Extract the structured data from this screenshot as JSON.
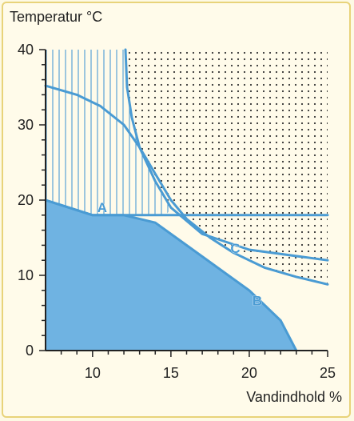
{
  "chart_data": {
    "type": "line",
    "ylabel": "Temperatur °C",
    "xlabel": "Vandindhold %",
    "xlim": [
      7,
      25
    ],
    "ylim": [
      0,
      40
    ],
    "x_ticks": [
      "10",
      "15",
      "20",
      "25"
    ],
    "y_ticks": [
      "0",
      "10",
      "20",
      "30",
      "40"
    ],
    "grid": false,
    "series": [
      {
        "name": "A",
        "points": [
          [
            7,
            20
          ],
          [
            10,
            18
          ],
          [
            25,
            18
          ]
        ]
      },
      {
        "name": "B",
        "points": [
          [
            7,
            20
          ],
          [
            10,
            18
          ],
          [
            12,
            18
          ],
          [
            14,
            17
          ],
          [
            16,
            14
          ],
          [
            18,
            11
          ],
          [
            20,
            8
          ],
          [
            22,
            4
          ],
          [
            23,
            0
          ]
        ]
      },
      {
        "name": "C",
        "points": [
          [
            7,
            35.2
          ],
          [
            9,
            34
          ],
          [
            10.5,
            32.5
          ],
          [
            12,
            30
          ],
          [
            13,
            27
          ],
          [
            14,
            23.5
          ],
          [
            15,
            20
          ],
          [
            16,
            17.5
          ],
          [
            17.5,
            15
          ],
          [
            19,
            13
          ],
          [
            21,
            11
          ],
          [
            23,
            9.8
          ],
          [
            25,
            8.8
          ]
        ]
      },
      {
        "name": "",
        "points": [
          [
            12.1,
            40
          ],
          [
            12.2,
            35
          ],
          [
            12.5,
            31
          ],
          [
            13,
            27
          ],
          [
            14,
            22.5
          ],
          [
            15,
            19
          ],
          [
            17,
            15.5
          ],
          [
            20,
            13.4
          ],
          [
            25,
            12
          ]
        ]
      }
    ],
    "series_labels": [
      {
        "text": "A",
        "x": 10.3,
        "y": 18.4
      },
      {
        "text": "B",
        "x": 20.2,
        "y": 6.0
      },
      {
        "text": "C",
        "x": 18.8,
        "y": 13.0
      }
    ],
    "colors": {
      "line": "#4a9bd3",
      "fill": "#6fb3e2",
      "dots": "#333333",
      "hatch": "#5aa2d6",
      "axis": "#222222"
    }
  }
}
